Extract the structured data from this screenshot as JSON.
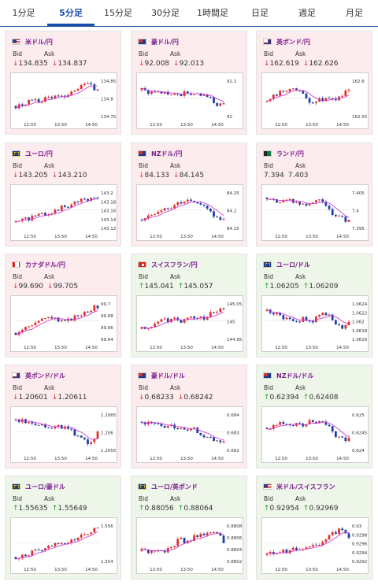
{
  "tabs": [
    "1分足",
    "5分足",
    "15分足",
    "30分足",
    "1時間足",
    "日足",
    "週足",
    "月足"
  ],
  "active_tab": 1,
  "labels": {
    "bid": "Bid",
    "ask": "Ask"
  },
  "x_ticks": [
    "12:50",
    "13:50",
    "14:50"
  ],
  "colors": {
    "up_card": "#eef6ea",
    "down_card": "#fdeced",
    "bull": "#e03030",
    "bear": "#1f3fa8",
    "ma": "#d040d0",
    "title": "#7a1a8f",
    "tab_active": "#1a4ea8"
  },
  "pairs": [
    {
      "name": "米ドル/円",
      "flag": "usd",
      "dir": "down",
      "bid": "134.835",
      "ask": "134.837",
      "y_ticks": [
        "134.85",
        "134.8",
        "134.75"
      ]
    },
    {
      "name": "豪ドル/円",
      "flag": "aud",
      "dir": "down",
      "bid": "92.008",
      "ask": "92.013",
      "y_ticks": [
        "92.1",
        "92"
      ]
    },
    {
      "name": "英ポンド/円",
      "flag": "gbp",
      "dir": "down",
      "bid": "162.619",
      "ask": "162.626",
      "y_ticks": [
        "162.6",
        "162.55"
      ]
    },
    {
      "name": "ユーロ/円",
      "flag": "eur",
      "dir": "down",
      "bid": "143.205",
      "ask": "143.210",
      "y_ticks": [
        "143.2",
        "143.18",
        "143.16",
        "143.14",
        "143.12"
      ]
    },
    {
      "name": "NZドル/円",
      "flag": "nzd",
      "dir": "down",
      "bid": "84.133",
      "ask": "84.145",
      "y_ticks": [
        "84.25",
        "84.2",
        "84.15"
      ]
    },
    {
      "name": "ランド/円",
      "flag": "zar",
      "dir": "none",
      "bid": "7.394",
      "ask": "7.403",
      "y_ticks": [
        "7.405",
        "7.4",
        "7.395"
      ]
    },
    {
      "name": "カナダドル/円",
      "flag": "cad",
      "dir": "down",
      "bid": "99.690",
      "ask": "99.705",
      "y_ticks": [
        "99.7",
        "99.68",
        "99.66",
        "99.64"
      ]
    },
    {
      "name": "スイスフラン/円",
      "flag": "chf",
      "dir": "up",
      "bid": "145.041",
      "ask": "145.057",
      "y_ticks": [
        "145.05",
        "145",
        "144.95"
      ]
    },
    {
      "name": "ユーロ/ドル",
      "flag": "eur",
      "dir": "up",
      "bid": "1.06205",
      "ask": "1.06209",
      "y_ticks": [
        "1.0624",
        "1.0622",
        "1.062",
        "1.0618",
        "1.0616"
      ]
    },
    {
      "name": "英ポンド/ドル",
      "flag": "gbp",
      "dir": "down",
      "bid": "1.20601",
      "ask": "1.20611",
      "y_ticks": [
        "1.2065",
        "1.206",
        "1.2055"
      ]
    },
    {
      "name": "豪ドル/ドル",
      "flag": "aud",
      "dir": "down",
      "bid": "0.68233",
      "ask": "0.68242",
      "y_ticks": [
        "0.684",
        "0.683",
        "0.682"
      ]
    },
    {
      "name": "NZドル/ドル",
      "flag": "nzd",
      "dir": "up",
      "bid": "0.62394",
      "ask": "0.62408",
      "y_ticks": [
        "0.625",
        "0.6245",
        "0.624"
      ]
    },
    {
      "name": "ユーロ/豪ドル",
      "flag": "eur",
      "dir": "up",
      "bid": "1.55635",
      "ask": "1.55649",
      "y_ticks": [
        "1.556",
        "1.554"
      ]
    },
    {
      "name": "ユーロ/英ポンド",
      "flag": "eur",
      "dir": "up",
      "bid": "0.88056",
      "ask": "0.88064",
      "y_ticks": [
        "0.8808",
        "0.8806",
        "0.8804",
        "0.8802"
      ]
    },
    {
      "name": "米ドル/スイスフラン",
      "flag": "usd",
      "dir": "up",
      "bid": "0.92954",
      "ask": "0.92969",
      "y_ticks": [
        "0.93",
        "0.9298",
        "0.9296",
        "0.9294",
        "0.9292"
      ]
    }
  ],
  "chart_data": [
    {
      "type": "candlestick",
      "pair": "米ドル/円",
      "trend": [
        0.3,
        0.35,
        0.45,
        0.4,
        0.5,
        0.55,
        0.5,
        0.6,
        0.7,
        0.85,
        0.8,
        0.7
      ]
    },
    {
      "type": "candlestick",
      "pair": "豪ドル/円",
      "trend": [
        0.7,
        0.65,
        0.6,
        0.62,
        0.58,
        0.6,
        0.62,
        0.6,
        0.55,
        0.5,
        0.35,
        0.3
      ]
    },
    {
      "type": "candlestick",
      "pair": "英ポンド/円",
      "trend": [
        0.4,
        0.55,
        0.65,
        0.75,
        0.7,
        0.55,
        0.4,
        0.45,
        0.5,
        0.45,
        0.55,
        0.75
      ]
    },
    {
      "type": "candlestick",
      "pair": "ユーロ/円",
      "trend": [
        0.2,
        0.25,
        0.3,
        0.35,
        0.4,
        0.45,
        0.55,
        0.6,
        0.7,
        0.75,
        0.8,
        0.8
      ]
    },
    {
      "type": "candlestick",
      "pair": "NZドル/円",
      "trend": [
        0.25,
        0.35,
        0.45,
        0.55,
        0.6,
        0.7,
        0.75,
        0.7,
        0.6,
        0.45,
        0.3,
        0.25
      ]
    },
    {
      "type": "candlestick",
      "pair": "ランド/円",
      "trend": [
        0.8,
        0.75,
        0.7,
        0.72,
        0.65,
        0.6,
        0.7,
        0.75,
        0.55,
        0.4,
        0.3,
        0.2
      ]
    },
    {
      "type": "candlestick",
      "pair": "カナダドル/円",
      "trend": [
        0.2,
        0.3,
        0.4,
        0.5,
        0.55,
        0.6,
        0.45,
        0.5,
        0.6,
        0.7,
        0.8,
        0.85
      ]
    },
    {
      "type": "candlestick",
      "pair": "スイスフラン/円",
      "trend": [
        0.3,
        0.35,
        0.45,
        0.5,
        0.55,
        0.5,
        0.55,
        0.6,
        0.55,
        0.65,
        0.75,
        0.8
      ]
    },
    {
      "type": "candlestick",
      "pair": "ユーロ/ドル",
      "trend": [
        0.75,
        0.7,
        0.6,
        0.55,
        0.5,
        0.55,
        0.45,
        0.65,
        0.7,
        0.5,
        0.3,
        0.45
      ]
    },
    {
      "type": "candlestick",
      "pair": "英ポンド/ドル",
      "trend": [
        0.8,
        0.75,
        0.7,
        0.72,
        0.65,
        0.6,
        0.65,
        0.55,
        0.45,
        0.35,
        0.2,
        0.45
      ]
    },
    {
      "type": "candlestick",
      "pair": "豪ドル/ドル",
      "trend": [
        0.75,
        0.7,
        0.65,
        0.6,
        0.62,
        0.55,
        0.5,
        0.55,
        0.45,
        0.35,
        0.25,
        0.3
      ]
    },
    {
      "type": "candlestick",
      "pair": "NZドル/ドル",
      "trend": [
        0.6,
        0.65,
        0.7,
        0.72,
        0.68,
        0.7,
        0.75,
        0.8,
        0.7,
        0.45,
        0.3,
        0.35
      ]
    },
    {
      "type": "candlestick",
      "pair": "ユーロ/豪ドル",
      "trend": [
        0.15,
        0.2,
        0.25,
        0.3,
        0.35,
        0.45,
        0.55,
        0.5,
        0.6,
        0.7,
        0.8,
        0.85
      ]
    },
    {
      "type": "candlestick",
      "pair": "ユーロ/英ポンド",
      "trend": [
        0.3,
        0.25,
        0.35,
        0.3,
        0.4,
        0.6,
        0.5,
        0.65,
        0.75,
        0.7,
        0.8,
        0.55
      ]
    },
    {
      "type": "candlestick",
      "pair": "米ドル/スイスフラン",
      "trend": [
        0.2,
        0.25,
        0.3,
        0.3,
        0.35,
        0.4,
        0.45,
        0.5,
        0.6,
        0.75,
        0.85,
        0.65
      ]
    }
  ]
}
